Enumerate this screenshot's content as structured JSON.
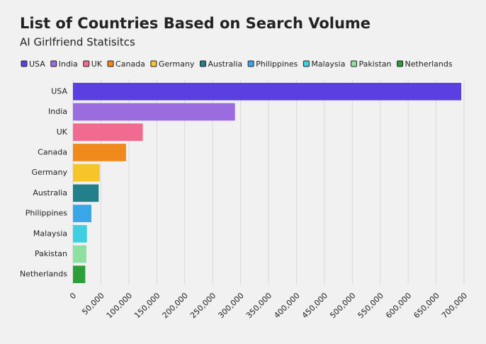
{
  "chart_data": {
    "type": "hbar",
    "title": "List of Countries Based on Search Volume",
    "subtitle": "AI Girlfriend Statisitcs",
    "categories": [
      "USA",
      "India",
      "UK",
      "Canada",
      "Germany",
      "Australia",
      "Philippines",
      "Malaysia",
      "Pakistan",
      "Netherlands"
    ],
    "values": [
      695000,
      290000,
      125000,
      95000,
      48000,
      46000,
      33000,
      25000,
      24000,
      22000
    ],
    "colors": [
      "#5b3fe0",
      "#9a6ce0",
      "#f06b8f",
      "#f08a1c",
      "#f5c52a",
      "#237f8a",
      "#3aa6e8",
      "#3fcfe0",
      "#8ee0a0",
      "#2e9e3a"
    ],
    "xlim": [
      0,
      700000
    ],
    "xticks": [
      0,
      {
        "value": 50000,
        "label": "50,000"
      },
      {
        "value": 100000,
        "label": "100,000"
      },
      {
        "value": 150000,
        "label": "150,000"
      },
      {
        "value": 200000,
        "label": "200,000"
      },
      {
        "value": 250000,
        "label": "250,000"
      },
      {
        "value": 300000,
        "label": "300,000"
      },
      {
        "value": 350000,
        "label": "350,000"
      },
      {
        "value": 400000,
        "label": "400,000"
      },
      {
        "value": 450000,
        "label": "450,000"
      },
      {
        "value": 500000,
        "label": "500,000"
      },
      {
        "value": 550000,
        "label": "550,000"
      },
      {
        "value": 600000,
        "label": "600,000"
      },
      {
        "value": 650000,
        "label": "650,000"
      },
      {
        "value": 700000,
        "label": "700,000"
      }
    ],
    "grid": true,
    "legend": "top-left"
  }
}
